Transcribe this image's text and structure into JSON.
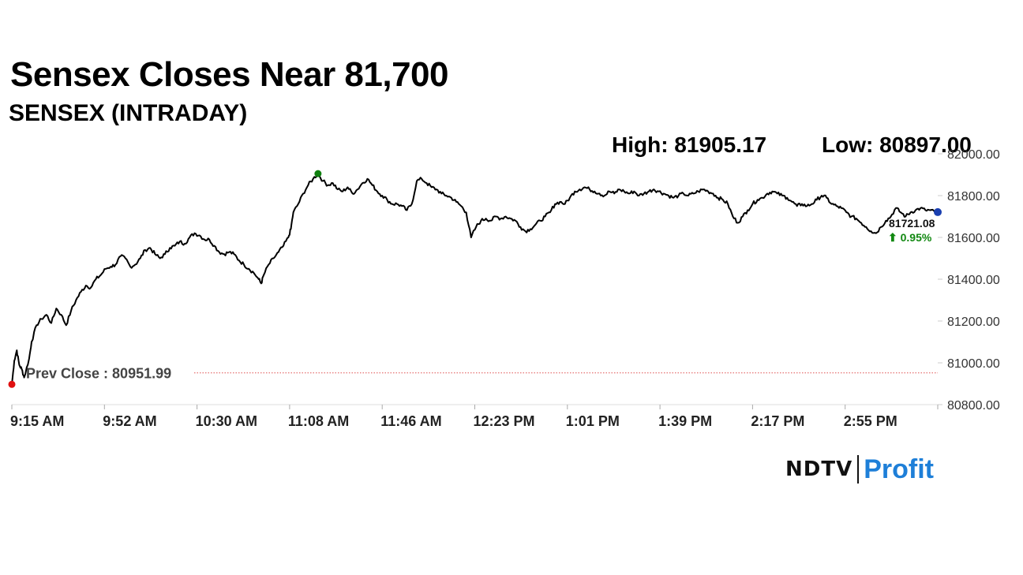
{
  "headline": "Sensex Closes Near 81,700",
  "subheadline": "SENSEX (INTRADAY)",
  "stats": {
    "high_label": "High: 81905.17",
    "low_label": "Low: 80897.00"
  },
  "brand": {
    "ndtv": "NDTV",
    "profit": "Profit"
  },
  "colors": {
    "line": "#000000",
    "prev_close_line": "#e05050",
    "low_marker": "#e01010",
    "high_marker": "#108010",
    "last_marker": "#1a3fb0",
    "positive_change": "#118811",
    "brand_profit": "#1e7fd8"
  },
  "chart_data": {
    "type": "line",
    "title": "SENSEX (INTRADAY)",
    "xlabel": "",
    "ylabel": "",
    "x_tick_labels": [
      "9:15 AM",
      "9:52 AM",
      "10:30 AM",
      "11:08 AM",
      "11:46 AM",
      "12:23 PM",
      "1:01 PM",
      "1:39 PM",
      "2:17 PM",
      "2:55 PM"
    ],
    "y_tick_labels": [
      "82000.00",
      "81800.00",
      "81600.00",
      "81400.00",
      "81200.00",
      "81000.00",
      "80800.00"
    ],
    "ylim": [
      80800,
      82000
    ],
    "x_range_minutes": [
      0,
      375
    ],
    "grid": false,
    "y_axis_side": "right",
    "prev_close": 80951.99,
    "prev_close_label": "Prev Close : 80951.99",
    "high": 81905.17,
    "low": 80897.0,
    "last_value": 81721.08,
    "last_value_label": "81721.08",
    "change_label": "⬆ 0.95%",
    "series": [
      {
        "points": [
          [
            0,
            80897
          ],
          [
            1,
            81010
          ],
          [
            2,
            81060
          ],
          [
            3,
            80990
          ],
          [
            4,
            80970
          ],
          [
            5,
            80930
          ],
          [
            7,
            81020
          ],
          [
            8,
            81100
          ],
          [
            10,
            81180
          ],
          [
            12,
            81210
          ],
          [
            14,
            81230
          ],
          [
            16,
            81190
          ],
          [
            18,
            81260
          ],
          [
            20,
            81230
          ],
          [
            22,
            81180
          ],
          [
            24,
            81250
          ],
          [
            26,
            81300
          ],
          [
            28,
            81340
          ],
          [
            30,
            81370
          ],
          [
            32,
            81360
          ],
          [
            34,
            81400
          ],
          [
            36,
            81420
          ],
          [
            38,
            81450
          ],
          [
            40,
            81460
          ],
          [
            42,
            81470
          ],
          [
            44,
            81510
          ],
          [
            46,
            81500
          ],
          [
            48,
            81460
          ],
          [
            50,
            81470
          ],
          [
            52,
            81500
          ],
          [
            54,
            81540
          ],
          [
            56,
            81550
          ],
          [
            58,
            81520
          ],
          [
            60,
            81500
          ],
          [
            62,
            81520
          ],
          [
            64,
            81550
          ],
          [
            66,
            81560
          ],
          [
            68,
            81580
          ],
          [
            70,
            81570
          ],
          [
            72,
            81600
          ],
          [
            74,
            81620
          ],
          [
            76,
            81610
          ],
          [
            78,
            81590
          ],
          [
            80,
            81590
          ],
          [
            82,
            81560
          ],
          [
            84,
            81530
          ],
          [
            86,
            81520
          ],
          [
            88,
            81530
          ],
          [
            90,
            81520
          ],
          [
            92,
            81490
          ],
          [
            94,
            81470
          ],
          [
            96,
            81450
          ],
          [
            98,
            81430
          ],
          [
            100,
            81400
          ],
          [
            101,
            81380
          ],
          [
            102,
            81420
          ],
          [
            104,
            81470
          ],
          [
            106,
            81500
          ],
          [
            108,
            81530
          ],
          [
            110,
            81560
          ],
          [
            112,
            81600
          ],
          [
            113,
            81640
          ],
          [
            114,
            81720
          ],
          [
            116,
            81760
          ],
          [
            118,
            81810
          ],
          [
            120,
            81850
          ],
          [
            122,
            81880
          ],
          [
            124,
            81905
          ],
          [
            126,
            81870
          ],
          [
            128,
            81850
          ],
          [
            130,
            81860
          ],
          [
            132,
            81830
          ],
          [
            134,
            81820
          ],
          [
            136,
            81840
          ],
          [
            138,
            81810
          ],
          [
            140,
            81830
          ],
          [
            142,
            81860
          ],
          [
            144,
            81880
          ],
          [
            146,
            81850
          ],
          [
            148,
            81820
          ],
          [
            150,
            81800
          ],
          [
            152,
            81780
          ],
          [
            154,
            81760
          ],
          [
            156,
            81760
          ],
          [
            158,
            81750
          ],
          [
            160,
            81730
          ],
          [
            162,
            81760
          ],
          [
            164,
            81870
          ],
          [
            166,
            81880
          ],
          [
            168,
            81860
          ],
          [
            170,
            81840
          ],
          [
            172,
            81830
          ],
          [
            174,
            81810
          ],
          [
            176,
            81800
          ],
          [
            178,
            81790
          ],
          [
            180,
            81770
          ],
          [
            182,
            81750
          ],
          [
            184,
            81720
          ],
          [
            186,
            81600
          ],
          [
            188,
            81650
          ],
          [
            190,
            81680
          ],
          [
            192,
            81690
          ],
          [
            194,
            81680
          ],
          [
            196,
            81700
          ],
          [
            198,
            81690
          ],
          [
            200,
            81700
          ],
          [
            202,
            81690
          ],
          [
            204,
            81680
          ],
          [
            206,
            81650
          ],
          [
            208,
            81630
          ],
          [
            210,
            81640
          ],
          [
            212,
            81660
          ],
          [
            214,
            81680
          ],
          [
            216,
            81700
          ],
          [
            218,
            81720
          ],
          [
            220,
            81760
          ],
          [
            222,
            81770
          ],
          [
            224,
            81760
          ],
          [
            226,
            81790
          ],
          [
            228,
            81820
          ],
          [
            230,
            81830
          ],
          [
            232,
            81840
          ],
          [
            234,
            81830
          ],
          [
            236,
            81820
          ],
          [
            238,
            81810
          ],
          [
            240,
            81800
          ],
          [
            242,
            81820
          ],
          [
            244,
            81810
          ],
          [
            246,
            81830
          ],
          [
            248,
            81820
          ],
          [
            250,
            81810
          ],
          [
            252,
            81820
          ],
          [
            254,
            81800
          ],
          [
            256,
            81810
          ],
          [
            258,
            81820
          ],
          [
            260,
            81830
          ],
          [
            262,
            81820
          ],
          [
            264,
            81810
          ],
          [
            266,
            81800
          ],
          [
            268,
            81790
          ],
          [
            270,
            81800
          ],
          [
            272,
            81810
          ],
          [
            274,
            81800
          ],
          [
            276,
            81810
          ],
          [
            278,
            81820
          ],
          [
            280,
            81830
          ],
          [
            282,
            81820
          ],
          [
            284,
            81810
          ],
          [
            286,
            81790
          ],
          [
            288,
            81780
          ],
          [
            290,
            81760
          ],
          [
            292,
            81700
          ],
          [
            294,
            81670
          ],
          [
            296,
            81700
          ],
          [
            298,
            81730
          ],
          [
            300,
            81760
          ],
          [
            302,
            81780
          ],
          [
            304,
            81790
          ],
          [
            306,
            81810
          ],
          [
            308,
            81820
          ],
          [
            310,
            81810
          ],
          [
            312,
            81800
          ],
          [
            314,
            81790
          ],
          [
            316,
            81770
          ],
          [
            318,
            81750
          ],
          [
            320,
            81760
          ],
          [
            322,
            81750
          ],
          [
            324,
            81760
          ],
          [
            326,
            81780
          ],
          [
            328,
            81800
          ],
          [
            330,
            81790
          ],
          [
            332,
            81760
          ],
          [
            334,
            81750
          ],
          [
            336,
            81740
          ],
          [
            338,
            81720
          ],
          [
            340,
            81700
          ],
          [
            342,
            81690
          ],
          [
            344,
            81670
          ],
          [
            346,
            81650
          ],
          [
            348,
            81630
          ],
          [
            350,
            81620
          ],
          [
            352,
            81650
          ],
          [
            354,
            81680
          ],
          [
            356,
            81700
          ],
          [
            358,
            81740
          ],
          [
            360,
            81720
          ],
          [
            362,
            81700
          ],
          [
            364,
            81720
          ],
          [
            366,
            81730
          ],
          [
            368,
            81740
          ],
          [
            370,
            81730
          ],
          [
            372,
            81730
          ],
          [
            374,
            81720
          ],
          [
            375,
            81721.08
          ]
        ]
      }
    ]
  }
}
